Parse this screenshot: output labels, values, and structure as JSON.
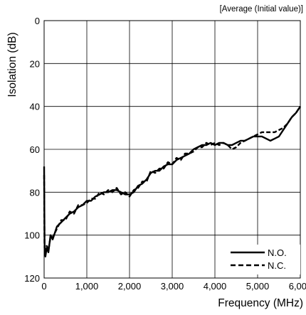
{
  "chart_data": {
    "type": "line",
    "title": "[Average (Initial value)]",
    "xlabel": "Frequency (MHz)",
    "ylabel": "Isolation (dB)",
    "xlim": [
      0,
      6000
    ],
    "ylim": [
      0,
      120
    ],
    "y_inverted": true,
    "grid": true,
    "legend_position": "bottom-right",
    "x_ticks": [
      {
        "value": 0,
        "label": "0"
      },
      {
        "value": 1000,
        "label": "1,000"
      },
      {
        "value": 2000,
        "label": "2,000"
      },
      {
        "value": 3000,
        "label": "3,000"
      },
      {
        "value": 4000,
        "label": "4,000"
      },
      {
        "value": 5000,
        "label": "5,000"
      },
      {
        "value": 6000,
        "label": "6,000"
      }
    ],
    "y_ticks": [
      {
        "value": 0,
        "label": "0"
      },
      {
        "value": 20,
        "label": "20"
      },
      {
        "value": 40,
        "label": "40"
      },
      {
        "value": 60,
        "label": "60"
      },
      {
        "value": 80,
        "label": "80"
      },
      {
        "value": 100,
        "label": "100"
      },
      {
        "value": 120,
        "label": "120"
      }
    ],
    "series": [
      {
        "name": "N.O.",
        "line_style": "solid",
        "color": "#000000",
        "x": [
          0,
          10,
          30,
          60,
          100,
          150,
          200,
          300,
          400,
          500,
          600,
          700,
          800,
          900,
          1000,
          1100,
          1200,
          1300,
          1400,
          1500,
          1600,
          1700,
          1800,
          1900,
          2000,
          2100,
          2200,
          2300,
          2400,
          2500,
          2600,
          2700,
          2800,
          2900,
          3000,
          3100,
          3200,
          3300,
          3400,
          3500,
          3600,
          3700,
          3800,
          3900,
          4000,
          4100,
          4200,
          4300,
          4400,
          4500,
          4600,
          4700,
          4800,
          4900,
          5000,
          5100,
          5200,
          5300,
          5400,
          5500,
          5600,
          5700,
          5800,
          5900,
          6000
        ],
        "y": [
          68,
          104,
          110,
          106,
          108,
          100,
          102,
          96,
          94,
          92,
          90,
          89,
          87,
          86,
          84,
          84,
          82,
          81,
          80,
          80,
          79,
          79,
          80,
          81,
          81,
          80,
          77,
          76,
          74,
          71,
          70,
          70,
          68,
          67,
          67,
          65,
          64,
          63,
          62,
          60,
          59,
          58,
          58,
          57,
          58,
          57,
          57,
          58,
          58,
          57,
          56,
          56,
          55,
          54,
          54,
          54,
          55,
          56,
          55,
          54,
          51,
          48,
          45,
          43,
          40
        ]
      },
      {
        "name": "N.C.",
        "line_style": "dashed",
        "color": "#000000",
        "x": [
          0,
          10,
          30,
          60,
          100,
          150,
          200,
          300,
          400,
          500,
          600,
          700,
          800,
          900,
          1000,
          1100,
          1200,
          1300,
          1400,
          1500,
          1600,
          1700,
          1800,
          1900,
          2000,
          2100,
          2200,
          2300,
          2400,
          2500,
          2600,
          2700,
          2800,
          2900,
          3000,
          3100,
          3200,
          3300,
          3400,
          3500,
          3600,
          3700,
          3800,
          3900,
          4000,
          4100,
          4200,
          4300,
          4400,
          4500,
          4600,
          4700,
          4800,
          4900,
          5000,
          5100,
          5200,
          5300,
          5400,
          5500,
          5600,
          5700,
          5800,
          5900,
          6000
        ],
        "y": [
          72,
          106,
          108,
          105,
          107,
          101,
          101,
          97,
          93,
          93,
          89,
          90,
          86,
          86,
          85,
          83,
          83,
          80,
          81,
          79,
          80,
          78,
          81,
          80,
          82,
          79,
          78,
          75,
          75,
          70,
          71,
          69,
          69,
          66,
          67,
          64,
          65,
          62,
          62,
          61,
          59,
          59,
          57,
          58,
          57,
          58,
          57,
          58,
          60,
          59,
          57,
          56,
          55,
          54,
          53,
          52,
          52,
          52,
          52,
          51,
          50,
          48,
          45,
          43,
          40
        ]
      }
    ]
  }
}
